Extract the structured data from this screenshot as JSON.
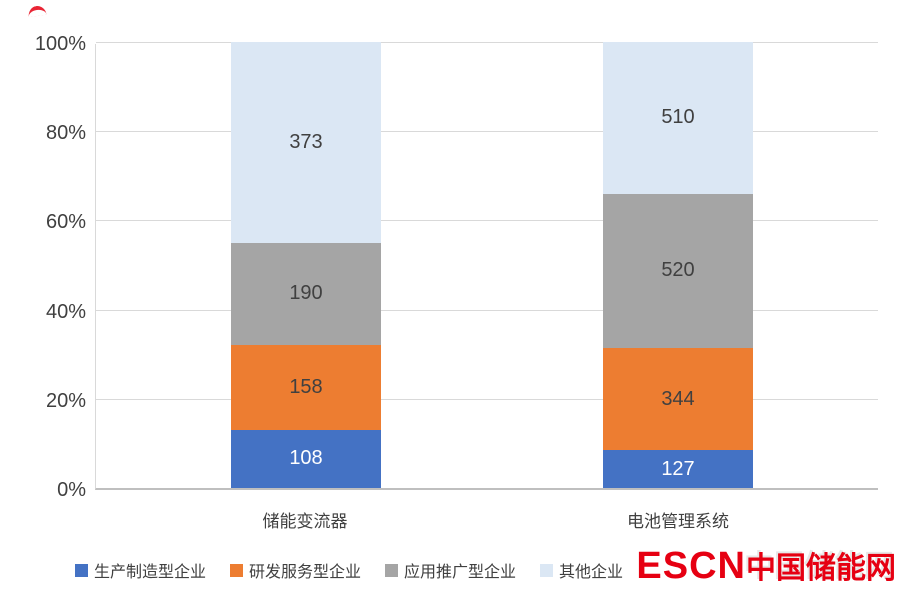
{
  "chart_data": {
    "type": "bar",
    "stacked": true,
    "percent": true,
    "title": "",
    "xlabel": "",
    "ylabel": "",
    "ylim": [
      0,
      100
    ],
    "grid": true,
    "legend_position": "bottom",
    "y_ticks": [
      "0%",
      "20%",
      "40%",
      "60%",
      "80%",
      "100%"
    ],
    "categories": [
      "储能变流器",
      "电池管理系统"
    ],
    "series": [
      {
        "name": "生产制造型企业",
        "color": "#4472c4",
        "values": [
          108,
          127
        ]
      },
      {
        "name": "研发服务型企业",
        "color": "#ed7d31",
        "values": [
          158,
          344
        ]
      },
      {
        "name": "应用推广型企业",
        "color": "#a5a5a5",
        "values": [
          190,
          520
        ]
      },
      {
        "name": "其他企业",
        "color": "#dbe7f4",
        "values": [
          373,
          510
        ]
      }
    ]
  },
  "watermark": {
    "escn": "ESCN",
    "site": "中国储能网"
  }
}
